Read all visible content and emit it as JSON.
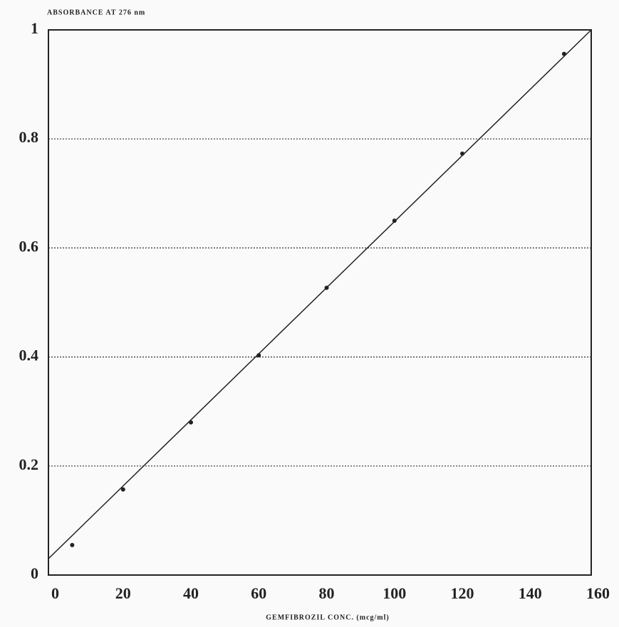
{
  "chart_data": {
    "type": "scatter",
    "title": "ABSORBANCE AT 276 nm",
    "x_label": "GEMFIBROZIL CONC. (mcg/ml)",
    "x": [
      5,
      20,
      40,
      60,
      80,
      100,
      120,
      150
    ],
    "values": [
      0.055,
      0.157,
      0.28,
      0.403,
      0.527,
      0.65,
      0.773,
      0.956
    ],
    "fit_line": {
      "x": [
        -2,
        158
      ],
      "values": [
        0.03,
        1.0
      ]
    },
    "color": "#222222",
    "xlim": [
      -2,
      158
    ],
    "ylim": [
      0,
      1
    ],
    "xticks": [
      0,
      20,
      40,
      60,
      80,
      100,
      120,
      140,
      160
    ],
    "yticks": [
      0,
      0.2,
      0.4,
      0.6,
      0.8,
      1
    ],
    "grid": true
  }
}
